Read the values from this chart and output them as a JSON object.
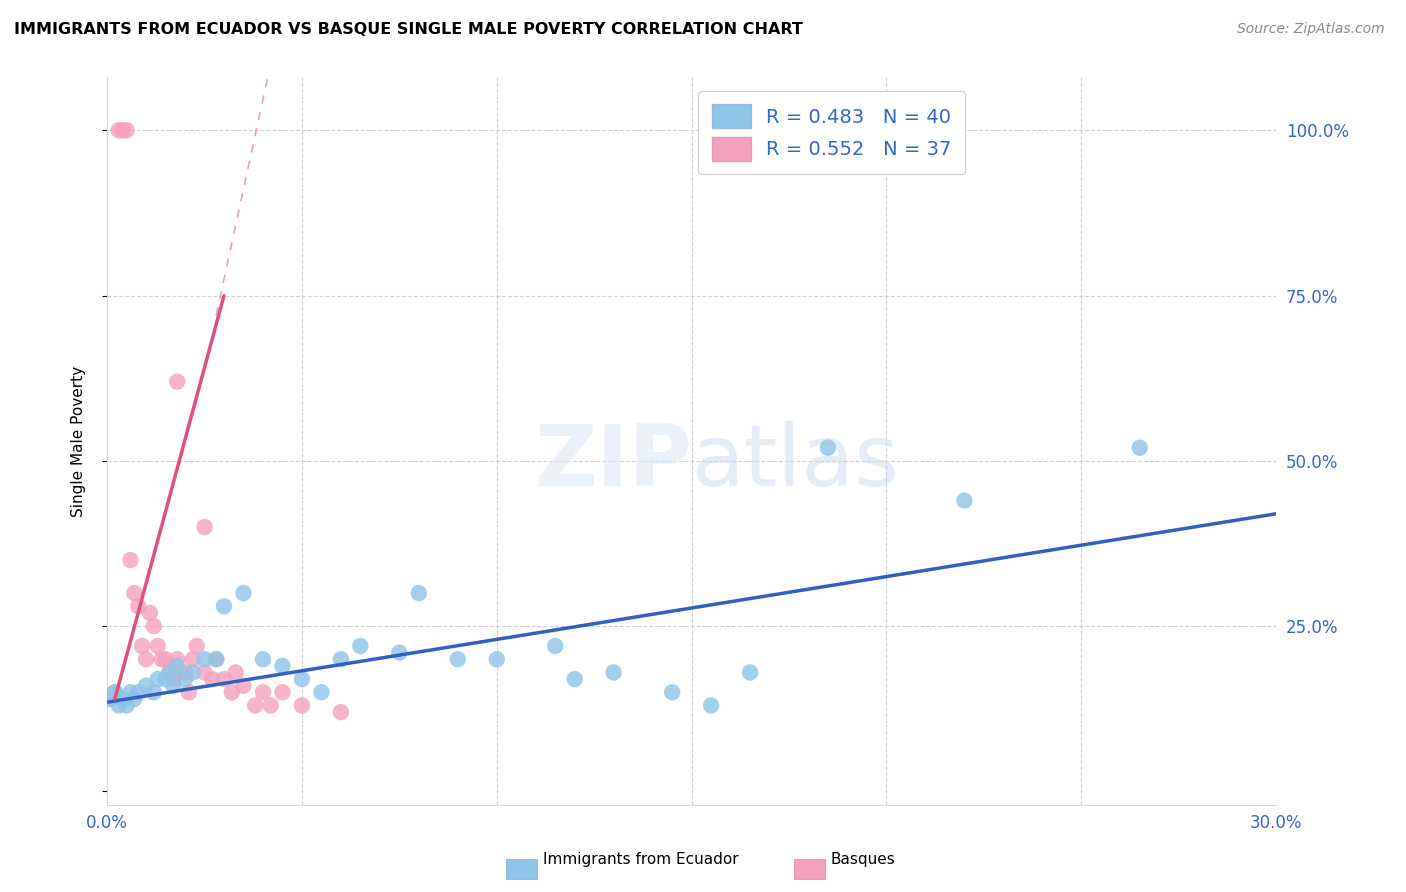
{
  "title": "IMMIGRANTS FROM ECUADOR VS BASQUE SINGLE MALE POVERTY CORRELATION CHART",
  "source": "Source: ZipAtlas.com",
  "ylabel": "Single Male Poverty",
  "legend_label1": "Immigrants from Ecuador",
  "legend_label2": "Basques",
  "R1": "0.483",
  "N1": "40",
  "R2": "0.552",
  "N2": "37",
  "blue_color": "#8ec4e8",
  "pink_color": "#f4a0be",
  "blue_line_color": "#3060c0",
  "pink_line_color": "#e0507a",
  "pink_dash_color": "#e8a0b8",
  "legend_R_color": "#3366cc",
  "xlim": [
    0.0,
    0.3
  ],
  "ylim": [
    -0.02,
    1.08
  ],
  "blue_scatter_x": [
    0.001,
    0.002,
    0.003,
    0.004,
    0.005,
    0.006,
    0.007,
    0.008,
    0.01,
    0.012,
    0.013,
    0.015,
    0.016,
    0.017,
    0.018,
    0.02,
    0.022,
    0.025,
    0.028,
    0.03,
    0.035,
    0.04,
    0.045,
    0.05,
    0.055,
    0.06,
    0.065,
    0.075,
    0.08,
    0.09,
    0.1,
    0.115,
    0.12,
    0.13,
    0.145,
    0.155,
    0.165,
    0.185,
    0.22,
    0.265
  ],
  "blue_scatter_y": [
    0.14,
    0.15,
    0.13,
    0.14,
    0.13,
    0.15,
    0.14,
    0.15,
    0.16,
    0.15,
    0.17,
    0.17,
    0.18,
    0.16,
    0.19,
    0.17,
    0.18,
    0.2,
    0.2,
    0.28,
    0.3,
    0.2,
    0.19,
    0.17,
    0.15,
    0.2,
    0.22,
    0.21,
    0.3,
    0.2,
    0.2,
    0.22,
    0.17,
    0.18,
    0.15,
    0.13,
    0.18,
    0.52,
    0.44,
    0.52
  ],
  "pink_scatter_x": [
    0.001,
    0.002,
    0.003,
    0.004,
    0.005,
    0.006,
    0.007,
    0.008,
    0.009,
    0.01,
    0.011,
    0.012,
    0.013,
    0.014,
    0.015,
    0.016,
    0.017,
    0.018,
    0.02,
    0.021,
    0.022,
    0.023,
    0.025,
    0.027,
    0.028,
    0.03,
    0.032,
    0.033,
    0.035,
    0.038,
    0.04,
    0.042,
    0.045,
    0.05,
    0.06,
    0.018,
    0.025
  ],
  "pink_scatter_y": [
    0.14,
    0.15,
    1.0,
    1.0,
    1.0,
    0.35,
    0.3,
    0.28,
    0.22,
    0.2,
    0.27,
    0.25,
    0.22,
    0.2,
    0.2,
    0.18,
    0.17,
    0.2,
    0.18,
    0.15,
    0.2,
    0.22,
    0.18,
    0.17,
    0.2,
    0.17,
    0.15,
    0.18,
    0.16,
    0.13,
    0.15,
    0.13,
    0.15,
    0.13,
    0.12,
    0.62,
    0.4
  ],
  "blue_line_x0": 0.0,
  "blue_line_y0": 0.135,
  "blue_line_x1": 0.3,
  "blue_line_y1": 0.42,
  "pink_line_x0": 0.002,
  "pink_line_y0": 0.14,
  "pink_line_x1": 0.03,
  "pink_line_y1": 0.75
}
